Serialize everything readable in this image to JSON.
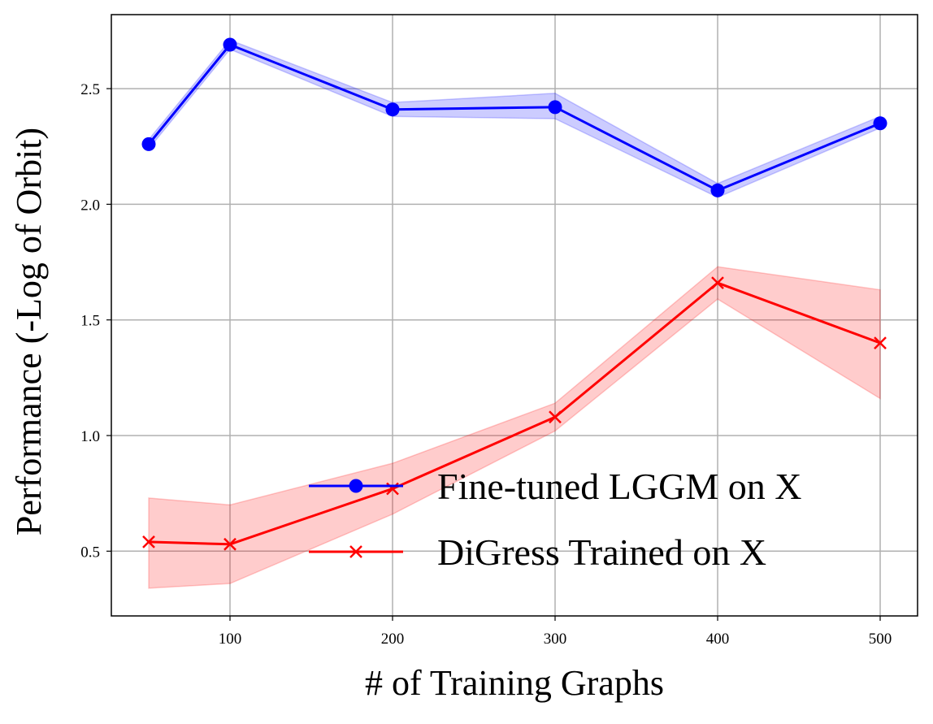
{
  "chart_data": {
    "type": "line",
    "title": "",
    "xlabel": "# of Training Graphs",
    "ylabel": "Performance (-Log of Orbit)",
    "xlim": [
      27,
      523
    ],
    "ylim": [
      0.22,
      2.82
    ],
    "xticks": [
      100,
      200,
      300,
      400,
      500
    ],
    "yticks": [
      0.5,
      1.0,
      1.5,
      2.0,
      2.5
    ],
    "grid": true,
    "legend_position": "lower-right",
    "x": [
      50,
      100,
      200,
      300,
      400,
      500
    ],
    "series": [
      {
        "name": "Fine-tuned LGGM on X",
        "color": "#0000ff",
        "band_color": "#0000ff",
        "marker": "circle",
        "values": [
          2.26,
          2.69,
          2.41,
          2.42,
          2.06,
          2.35
        ],
        "lower": [
          2.24,
          2.67,
          2.38,
          2.37,
          2.03,
          2.33
        ],
        "upper": [
          2.28,
          2.71,
          2.44,
          2.48,
          2.09,
          2.38
        ]
      },
      {
        "name": "DiGress Trained on X",
        "color": "#ff0000",
        "band_color": "#ff0000",
        "marker": "x",
        "values": [
          0.54,
          0.53,
          0.77,
          1.08,
          1.66,
          1.4
        ],
        "lower": [
          0.34,
          0.36,
          0.66,
          1.02,
          1.59,
          1.16
        ],
        "upper": [
          0.73,
          0.7,
          0.88,
          1.14,
          1.73,
          1.63
        ]
      }
    ]
  }
}
